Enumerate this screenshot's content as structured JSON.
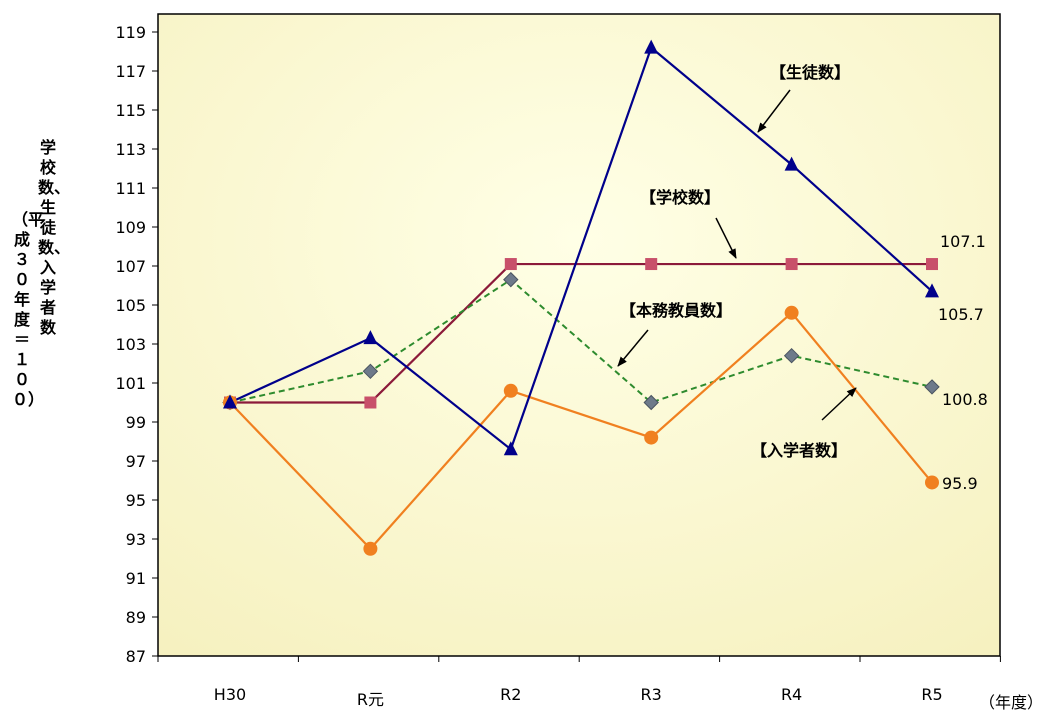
{
  "chart_data": {
    "type": "line",
    "categories": [
      "H30",
      "R元",
      "R2",
      "R3",
      "R4",
      "R5"
    ],
    "xlabel": "（年度）",
    "ylabel_line1": "学校数、生徒数、入学者数",
    "ylabel_line2": "（平成３０年度＝１００）",
    "ylim": [
      87,
      119
    ],
    "yticks": [
      87,
      89,
      91,
      93,
      95,
      97,
      99,
      101,
      103,
      105,
      107,
      109,
      111,
      113,
      115,
      117,
      119
    ],
    "series": [
      {
        "name": "【生徒数】",
        "values": [
          100,
          103.3,
          97.6,
          118.2,
          112.2,
          105.7
        ],
        "color": "#00008B",
        "marker": "triangle",
        "dashed": false
      },
      {
        "name": "【学校数】",
        "values": [
          100,
          100,
          107.1,
          107.1,
          107.1,
          107.1
        ],
        "color": "#8B1A3A",
        "marker": "square",
        "dashed": false
      },
      {
        "name": "【本務教員数】",
        "values": [
          100,
          101.6,
          106.3,
          100,
          102.4,
          100.8
        ],
        "color": "#2E8B2E",
        "marker": "diamond",
        "dashed": true
      },
      {
        "name": "【入学者数】",
        "values": [
          100,
          92.5,
          100.6,
          98.2,
          104.6,
          95.9
        ],
        "color": "#F08020",
        "marker": "circle",
        "dashed": false
      }
    ],
    "end_labels": [
      "105.7",
      "107.1",
      "100.8",
      "95.9"
    ],
    "grid": false,
    "legend": "inline callouts"
  }
}
